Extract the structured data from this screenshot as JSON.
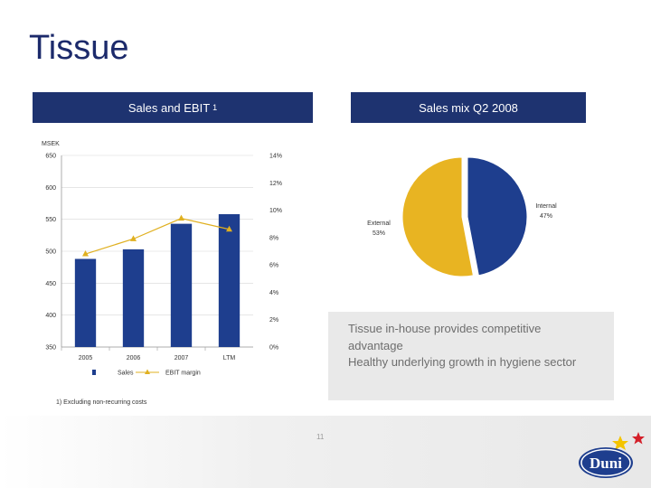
{
  "slide": {
    "title": "Tissue",
    "header_left": "Sales and EBIT",
    "header_left_footnote_mark": "1",
    "header_right": "Sales mix Q2 2008",
    "footnote": "1) Excluding non-recurring costs",
    "message_lines": [
      "Tissue in-house provides competitive advantage",
      "Healthy underlying growth in hygiene sector"
    ],
    "page_number": "11",
    "logo_text": "Duni"
  },
  "chart_data": [
    {
      "type": "bar",
      "title": "Sales and EBIT",
      "y_unit_label": "MSEK",
      "categories": [
        "2005",
        "2006",
        "2007",
        "LTM"
      ],
      "ylim": [
        350,
        650
      ],
      "yticks": [
        "650",
        "600",
        "550",
        "500",
        "450",
        "400",
        "350"
      ],
      "y2lim": [
        0,
        14
      ],
      "y2ticks": [
        "14%",
        "12%",
        "10%",
        "8%",
        "6%",
        "4%",
        "2%",
        "0%"
      ],
      "series": [
        {
          "name": "Sales",
          "kind": "bar",
          "axis": "left",
          "values": [
            488,
            503,
            543,
            558
          ],
          "color": "#1e3e8e"
        },
        {
          "name": "EBIT margin",
          "kind": "line",
          "axis": "right",
          "values": [
            6.8,
            7.9,
            9.4,
            8.6
          ],
          "color": "#e0b020"
        }
      ],
      "legend_position": "bottom"
    },
    {
      "type": "pie",
      "title": "Sales mix Q2 2008",
      "slices": [
        {
          "label": "Internal",
          "value": 47,
          "value_label": "47%",
          "color": "#1e3e8e"
        },
        {
          "label": "External",
          "value": 53,
          "value_label": "53%",
          "color": "#e8b422"
        }
      ]
    }
  ]
}
